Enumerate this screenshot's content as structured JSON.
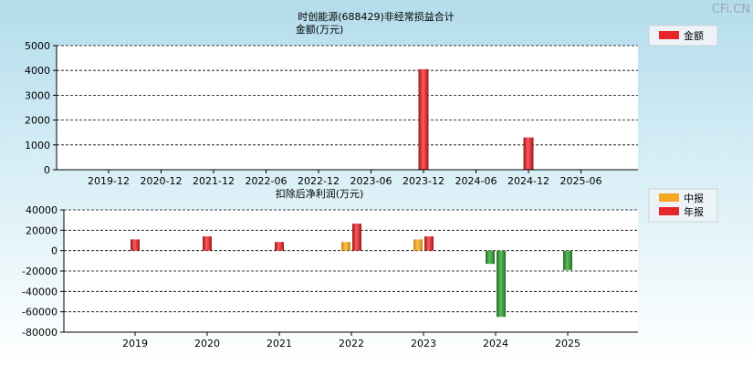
{
  "watermark": "CFi.CN",
  "chart_data": [
    {
      "type": "bar",
      "title": "时创能源(688429)非经常损益合计",
      "subtitle": "金额(万元)",
      "xlabel": "",
      "ylabel": "",
      "ylim": [
        0,
        5000
      ],
      "yticks": [
        0,
        1000,
        2000,
        3000,
        4000,
        5000
      ],
      "categories": [
        "2019-12",
        "2020-12",
        "2021-12",
        "2022-06",
        "2022-12",
        "2023-06",
        "2023-12",
        "2024-06",
        "2024-12",
        "2025-06"
      ],
      "series": [
        {
          "name": "金额",
          "color": "#e8262a",
          "values": [
            0,
            0,
            0,
            0,
            0,
            0,
            4050,
            0,
            1300,
            0
          ]
        }
      ],
      "grid": true,
      "legend": "top-right"
    },
    {
      "type": "bar",
      "title": "扣除后净利润(万元)",
      "xlabel": "",
      "ylabel": "",
      "ylim": [
        -80000,
        40000
      ],
      "yticks": [
        -80000,
        -60000,
        -40000,
        -20000,
        0,
        20000,
        40000
      ],
      "categories": [
        "2019",
        "2020",
        "2021",
        "2022",
        "2023",
        "2024",
        "2025"
      ],
      "series": [
        {
          "name": "中报",
          "color": "#f5a623",
          "values": [
            null,
            null,
            null,
            8500,
            11000,
            -13000,
            null
          ]
        },
        {
          "name": "年报",
          "color": "#e8262a",
          "values": [
            11000,
            14000,
            8500,
            26500,
            14000,
            -65000,
            -19000
          ]
        }
      ],
      "negative_color": "#3f9a3f",
      "grid": true,
      "legend": "top-right"
    }
  ]
}
